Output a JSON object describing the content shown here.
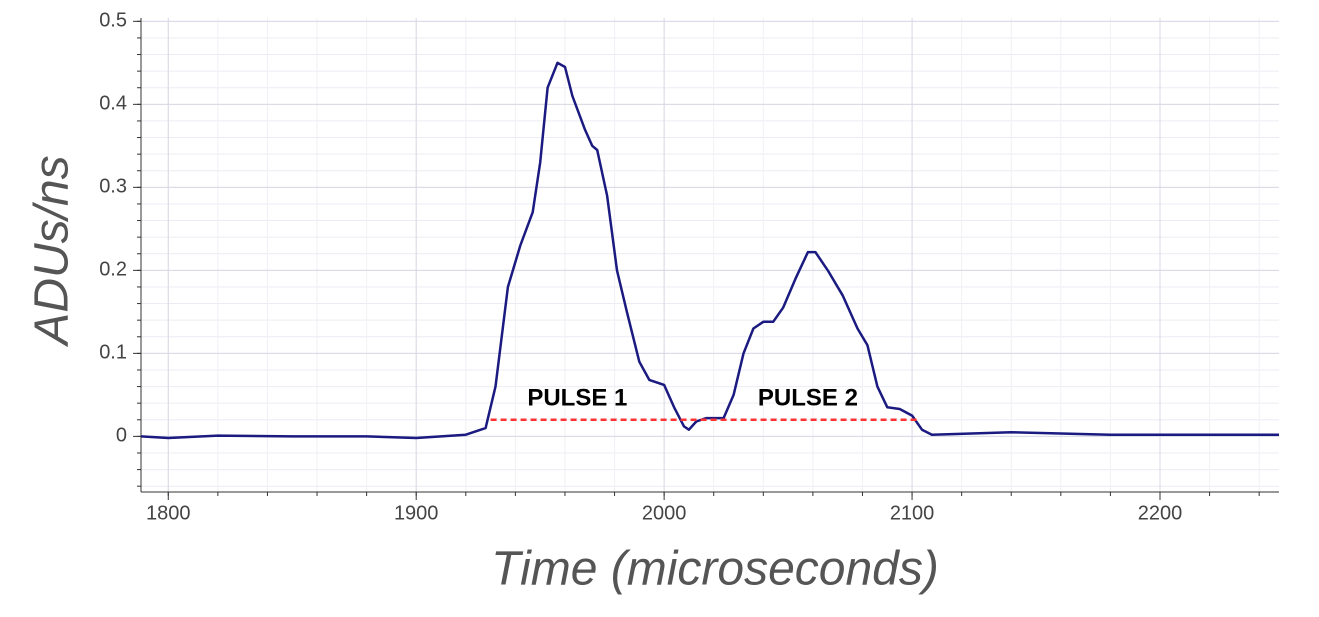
{
  "chart_data": {
    "type": "line",
    "xlabel": "Time (microseconds)",
    "ylabel": "ADUs/ns",
    "xlim": [
      1789,
      2248
    ],
    "ylim": [
      -0.067,
      0.504
    ],
    "xticks": [
      1800,
      1900,
      2000,
      2100,
      2200
    ],
    "yticks": [
      0,
      0.1,
      0.2,
      0.3,
      0.4,
      0.5
    ],
    "x_minor_ticks": [
      1800,
      1820,
      1840,
      1860,
      1880,
      1900,
      1920,
      1940,
      1960,
      1980,
      2000,
      2020,
      2040,
      2060,
      2080,
      2100,
      2120,
      2140,
      2160,
      2180,
      2200,
      2220,
      2240
    ],
    "y_minor_ticks": [
      -0.06,
      -0.04,
      -0.02,
      0,
      0.02,
      0.04,
      0.06,
      0.08,
      0.1,
      0.12,
      0.14,
      0.16,
      0.18,
      0.2,
      0.22,
      0.24,
      0.26,
      0.28,
      0.3,
      0.32,
      0.34,
      0.36,
      0.38,
      0.4,
      0.42,
      0.44,
      0.46,
      0.48,
      0.5
    ],
    "grid": true,
    "series": [
      {
        "color": "#1a1a80",
        "x": [
          1789,
          1800,
          1820,
          1850,
          1880,
          1900,
          1920,
          1928,
          1932,
          1937,
          1942,
          1947,
          1950,
          1953,
          1957,
          1960,
          1963,
          1968,
          1971,
          1973,
          1977,
          1981,
          1985,
          1990,
          1994,
          2000,
          2004,
          2008,
          2010,
          2013,
          2017,
          2024,
          2028,
          2032,
          2036,
          2040,
          2044,
          2048,
          2053,
          2058,
          2061,
          2066,
          2072,
          2078,
          2082,
          2086,
          2090,
          2095,
          2100,
          2104,
          2108,
          2140,
          2180,
          2210,
          2248
        ],
        "values": [
          0.0,
          -0.002,
          0.001,
          0.0,
          0.0,
          -0.002,
          0.002,
          0.01,
          0.06,
          0.18,
          0.23,
          0.27,
          0.33,
          0.42,
          0.45,
          0.445,
          0.41,
          0.37,
          0.35,
          0.345,
          0.29,
          0.2,
          0.15,
          0.09,
          0.068,
          0.062,
          0.035,
          0.012,
          0.008,
          0.018,
          0.022,
          0.022,
          0.05,
          0.1,
          0.13,
          0.138,
          0.138,
          0.155,
          0.19,
          0.222,
          0.222,
          0.2,
          0.17,
          0.13,
          0.11,
          0.06,
          0.035,
          0.033,
          0.025,
          0.008,
          0.002,
          0.005,
          0.002,
          0.002,
          0.002
        ]
      }
    ],
    "baseline": {
      "x": [
        1930,
        2102
      ],
      "values": [
        0.02,
        0.02
      ],
      "color": "#ff3333"
    },
    "annotations": [
      {
        "text": "PULSE 1",
        "x": 1965,
        "y": 0.045
      },
      {
        "text": "PULSE 2",
        "x": 2058,
        "y": 0.045
      }
    ]
  }
}
